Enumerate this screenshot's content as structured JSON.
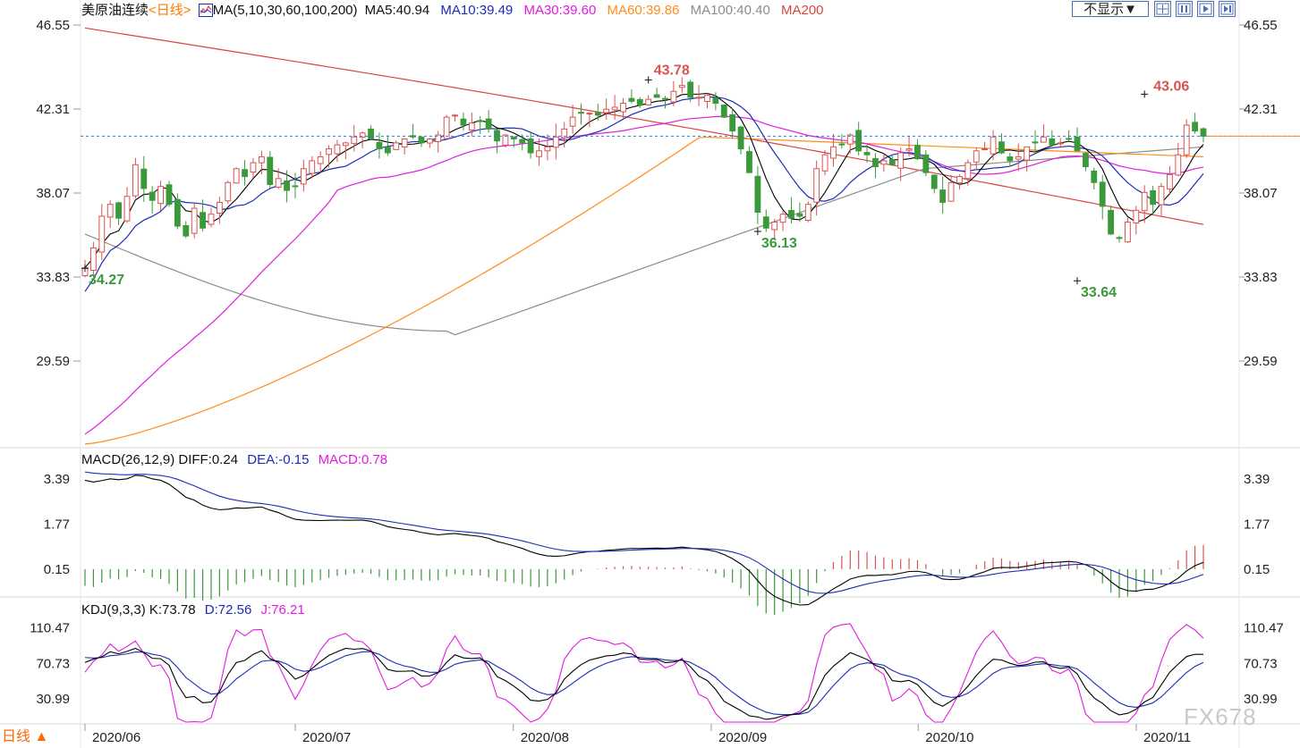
{
  "title": "美原油连续",
  "period_label": "<日线>",
  "hide_button": "不显示▼",
  "period_tab": "日线 ▲",
  "watermark": "FX678",
  "colors": {
    "up": "#d9534f",
    "down": "#3a9a3a",
    "ma5": "#000000",
    "ma10": "#1c2cb8",
    "ma30": "#e21be2",
    "ma60": "#ff8c1a",
    "ma100": "#8c8c8c",
    "ma200": "#d9463f",
    "last_price_line": "#2a7ae2"
  },
  "icons": [
    "ma-indicator-icon",
    "fit-icon",
    "split-icon",
    "next-icon",
    "last-icon"
  ],
  "price_panel": {
    "legend": {
      "ma_set": "MA(5,10,30,60,100,200)",
      "ma5": "MA5:40.94",
      "ma10": "MA10:39.49",
      "ma30": "MA30:39.60",
      "ma60": "MA60:39.86",
      "ma100": "MA100:40.40",
      "ma200": "MA200"
    },
    "y_ticks": [
      "46.55",
      "42.31",
      "38.07",
      "33.83",
      "29.59"
    ],
    "last_price": 40.94,
    "annotations": {
      "high1": "43.78",
      "low1": "34.27",
      "low2": "36.13",
      "high2": "43.06",
      "low3": "33.64"
    }
  },
  "macd_panel": {
    "legend": {
      "name": "MACD(26,12,9)",
      "diff": "DIFF:0.24",
      "dea": "DEA:-0.15",
      "macd": "MACD:0.78"
    },
    "y_ticks": [
      "3.39",
      "1.77",
      "0.15"
    ]
  },
  "kdj_panel": {
    "legend": {
      "name": "KDJ(9,3,3)",
      "k": "K:73.78",
      "d": "D:72.56",
      "j": "J:76.21"
    },
    "y_ticks": [
      "110.47",
      "70.73",
      "30.99"
    ]
  },
  "x_labels": [
    "2020/06",
    "2020/07",
    "2020/08",
    "2020/09",
    "2020/10",
    "2020/11"
  ],
  "chart_data": {
    "type": "candlestick",
    "title": "美原油连续",
    "x_range": [
      "2020/06",
      "2020/11"
    ],
    "price_ylim": [
      25.35,
      46.55
    ],
    "closes": [
      34.3,
      35.3,
      36.9,
      37.5,
      36.8,
      37.9,
      39.5,
      38.3,
      37.7,
      38.4,
      37.5,
      36.4,
      35.9,
      37.3,
      36.3,
      37.0,
      37.6,
      38.6,
      39.3,
      38.9,
      39.6,
      39.9,
      38.5,
      38.8,
      38.2,
      38.4,
      39.3,
      39.7,
      39.9,
      40.3,
      40.5,
      40.6,
      40.9,
      41.1,
      40.8,
      40.3,
      40.1,
      40.6,
      40.8,
      40.9,
      40.6,
      40.8,
      41.0,
      41.9,
      42.0,
      41.5,
      41.6,
      41.7,
      41.3,
      40.7,
      41.0,
      40.8,
      40.6,
      40.1,
      40.2,
      40.4,
      40.9,
      41.3,
      41.9,
      42.1,
      42.1,
      42.0,
      42.3,
      42.4,
      42.6,
      42.7,
      42.5,
      42.8,
      42.9,
      42.8,
      43.2,
      43.5,
      42.9,
      42.9,
      43.0,
      42.6,
      41.9,
      41.2,
      40.3,
      39.1,
      37.1,
      36.3,
      36.6,
      37.0,
      36.8,
      36.9,
      37.5,
      39.3,
      40.0,
      40.4,
      40.5,
      41.0,
      40.2,
      40.0,
      39.4,
      39.7,
      39.5,
      40.1,
      40.3,
      39.8,
      39.1,
      38.3,
      37.6,
      38.6,
      38.9,
      39.6,
      40.2,
      40.3,
      40.9,
      40.1,
      39.7,
      39.9,
      40.4,
      40.6,
      40.9,
      40.5,
      40.6,
      40.8,
      40.2,
      39.4,
      38.6,
      37.4,
      36.0,
      35.8,
      36.6,
      37.2,
      38.1,
      37.5,
      38.4,
      39.0,
      40.0,
      41.5,
      41.2,
      40.94
    ]
  }
}
